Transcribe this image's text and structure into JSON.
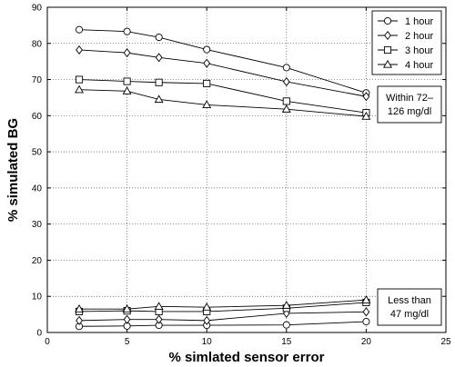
{
  "chart_data": {
    "type": "line",
    "xlabel": "% simlated sensor error",
    "ylabel": "% simulated BG",
    "xlim": [
      0,
      25
    ],
    "ylim": [
      0,
      90
    ],
    "xticks": [
      0,
      5,
      10,
      15,
      20,
      25
    ],
    "yticks": [
      0,
      10,
      20,
      30,
      40,
      50,
      60,
      70,
      80,
      90
    ],
    "grid": true,
    "legend_position": "top-right",
    "x": [
      2,
      5,
      7,
      10,
      15,
      20
    ],
    "series": [
      {
        "name": "1 hour",
        "marker": "circle",
        "values": [
          83.8,
          83.3,
          81.7,
          78.3,
          73.3,
          66.3
        ]
      },
      {
        "name": "2 hour",
        "marker": "diamond",
        "values": [
          78.2,
          77.4,
          76.1,
          74.5,
          69.4,
          65.3
        ]
      },
      {
        "name": "3 hour",
        "marker": "square",
        "values": [
          70.0,
          69.5,
          69.2,
          68.9,
          64.0,
          60.8
        ]
      },
      {
        "name": "4 hour",
        "marker": "triangle",
        "values": [
          67.2,
          66.8,
          64.5,
          63.0,
          61.8,
          59.8
        ]
      }
    ],
    "lower_series": [
      {
        "marker": "circle",
        "values": [
          1.7,
          1.8,
          2.0,
          2.0,
          2.1,
          3.0
        ]
      },
      {
        "marker": "diamond",
        "values": [
          3.3,
          3.6,
          3.6,
          3.3,
          5.3,
          5.7
        ]
      },
      {
        "marker": "square",
        "values": [
          5.8,
          6.0,
          5.8,
          5.8,
          6.7,
          8.3
        ]
      },
      {
        "marker": "triangle",
        "values": [
          6.5,
          6.5,
          7.2,
          7.0,
          7.5,
          9.0
        ]
      }
    ],
    "annotations": [
      {
        "lines": [
          "Within 72–",
          "126 mg/dl"
        ]
      },
      {
        "lines": [
          "Less than",
          "47 mg/dl"
        ]
      }
    ]
  }
}
